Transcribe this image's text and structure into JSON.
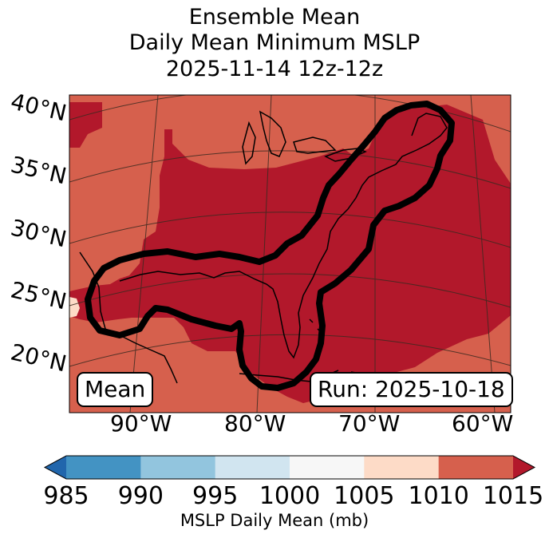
{
  "title": {
    "line1": "Ensemble Mean",
    "line2": "Daily Mean Minimum MSLP",
    "line3": "2025-11-14 12z-12z"
  },
  "chart_data": {
    "type": "heatmap",
    "variable": "MSLP Daily Mean (mb)",
    "levels": [
      985,
      990,
      995,
      1000,
      1005,
      1010,
      1015
    ],
    "level_colors": [
      "#2166ac",
      "#4393c3",
      "#92c5de",
      "#d1e5f0",
      "#f7f7f7",
      "#fddbc7",
      "#d6604d",
      "#b2182b"
    ],
    "extend": "both",
    "dominant_ranges": [
      {
        "range": "1010-1015 mb",
        "color": "#d6604d",
        "location": "map periphery"
      },
      {
        "range": ">1015 mb",
        "color": "#b2182b",
        "location": "central and eastern United States, western Atlantic"
      },
      {
        "range": "1005-1010 mb",
        "color": "#fddbc7",
        "location": "small patch over Mexico"
      }
    ],
    "contour_note": "thick black contour outlines the high-pressure region from the Gulf of Mexico to the Northeast",
    "lat_ticks": [
      "40°N",
      "35°N",
      "30°N",
      "25°N",
      "20°N"
    ],
    "lon_ticks": [
      "90°W",
      "80°W",
      "70°W",
      "60°W"
    ],
    "annotations": {
      "left": "Mean",
      "right": "Run: 2025-10-18"
    },
    "colorbar_label": "MSLP Daily Mean (mb)"
  }
}
